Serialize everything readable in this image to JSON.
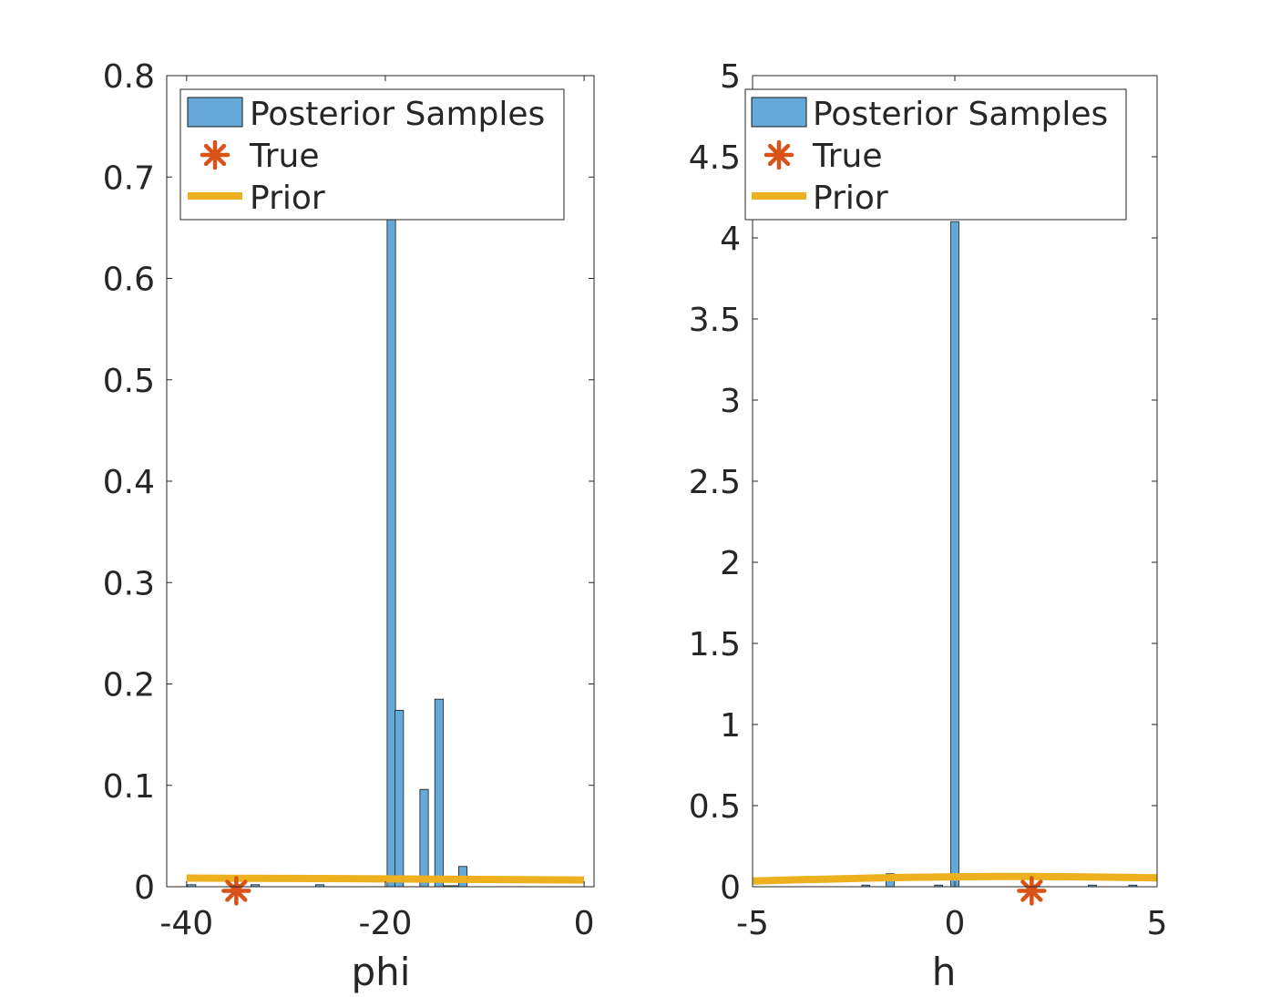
{
  "chart_data": [
    {
      "type": "bar",
      "xlabel": "phi",
      "ylabel": "",
      "xlim": [
        -42,
        1
      ],
      "ylim": [
        0,
        0.8
      ],
      "xticks": [
        -40,
        -20,
        0
      ],
      "xtick_labels": [
        "-40",
        "-20",
        "0"
      ],
      "yticks": [
        0,
        0.1,
        0.2,
        0.3,
        0.4,
        0.5,
        0.6,
        0.7,
        0.8
      ],
      "ytick_labels": [
        "0",
        "0.1",
        "0.2",
        "0.3",
        "0.4",
        "0.5",
        "0.6",
        "0.7",
        "0.8"
      ],
      "bin_width": 0.85,
      "series": [
        {
          "name": "Posterior Samples",
          "color": "#65a9d8",
          "bins": [
            {
              "x": -39.5,
              "y": 0.002
            },
            {
              "x": -34.8,
              "y": 0.002
            },
            {
              "x": -33.1,
              "y": 0.002
            },
            {
              "x": -26.6,
              "y": 0.002
            },
            {
              "x": -19.4,
              "y": 0.66
            },
            {
              "x": -18.6,
              "y": 0.174
            },
            {
              "x": -16.1,
              "y": 0.096
            },
            {
              "x": -14.6,
              "y": 0.185
            },
            {
              "x": -13.7,
              "y": 0.001
            },
            {
              "x": -12.9,
              "y": 0.001
            },
            {
              "x": -12.2,
              "y": 0.02
            }
          ]
        },
        {
          "name": "True",
          "color": "#d95319",
          "x": -35.0,
          "y": -0.004
        },
        {
          "name": "Prior",
          "color": "#edb120",
          "x": [
            -40,
            -30,
            -20,
            -10,
            0
          ],
          "y": [
            0.0085,
            0.0082,
            0.0078,
            0.0072,
            0.0066
          ]
        }
      ],
      "legend": "top-left"
    },
    {
      "type": "bar",
      "xlabel": "h",
      "ylabel": "",
      "xlim": [
        -5,
        5
      ],
      "ylim": [
        0,
        5
      ],
      "xticks": [
        -5,
        0,
        5
      ],
      "xtick_labels": [
        "-5",
        "0",
        "5"
      ],
      "yticks": [
        0,
        0.5,
        1,
        1.5,
        2,
        2.5,
        3,
        3.5,
        4,
        4.5,
        5
      ],
      "ytick_labels": [
        "0",
        "0.5",
        "1",
        "1.5",
        "2",
        "2.5",
        "3",
        "3.5",
        "4",
        "4.5",
        "5"
      ],
      "bin_width": 0.2,
      "series": [
        {
          "name": "Posterior Samples",
          "color": "#65a9d8",
          "bins": [
            {
              "x": -2.2,
              "y": 0.01
            },
            {
              "x": -1.6,
              "y": 0.08
            },
            {
              "x": -0.4,
              "y": 0.01
            },
            {
              "x": 0.0,
              "y": 4.1
            },
            {
              "x": 2.0,
              "y": 0.01
            },
            {
              "x": 3.4,
              "y": 0.01
            },
            {
              "x": 4.4,
              "y": 0.01
            }
          ]
        },
        {
          "name": "True",
          "color": "#d95319",
          "x": 1.9,
          "y": -0.025
        },
        {
          "name": "Prior",
          "color": "#edb120",
          "x": [
            -5,
            -4,
            -3,
            -2,
            -1,
            0,
            1,
            2,
            3,
            4,
            5
          ],
          "y": [
            0.035,
            0.042,
            0.048,
            0.054,
            0.058,
            0.061,
            0.063,
            0.063,
            0.061,
            0.058,
            0.055
          ]
        }
      ],
      "legend": "top-left"
    }
  ]
}
